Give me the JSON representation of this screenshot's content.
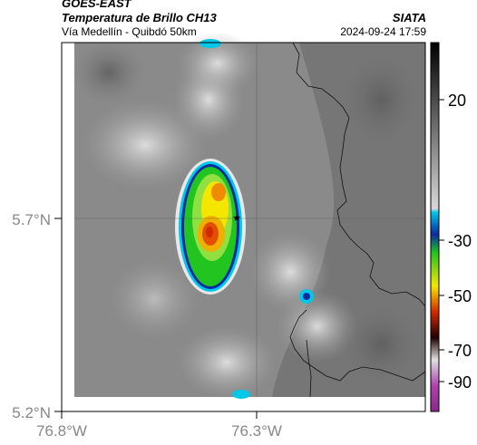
{
  "header": {
    "satellite": "GOES-EAST",
    "product": "Temperatura de Brillo CH13",
    "region": "Vía Medellín - Quibdó 50km",
    "agency": "SIATA",
    "datetime": "2024-09-24 17:59"
  },
  "map": {
    "lat_ticks": [
      "5.7°N",
      "5.2°N"
    ],
    "lon_ticks": [
      "76.8°W",
      "76.3°W"
    ],
    "marker": "station-marker"
  },
  "colorbar": {
    "ticks": [
      "20",
      "-30",
      "-50",
      "-70",
      "-90"
    ],
    "colors": {
      "warm_top": "#1a1a1a",
      "cyan": "#00c8e8",
      "blue": "#0a2aa0",
      "green": "#22c520",
      "yellow": "#f5e600",
      "red": "#d22a00",
      "dark": "#200000",
      "magenta": "#b040b0"
    }
  }
}
